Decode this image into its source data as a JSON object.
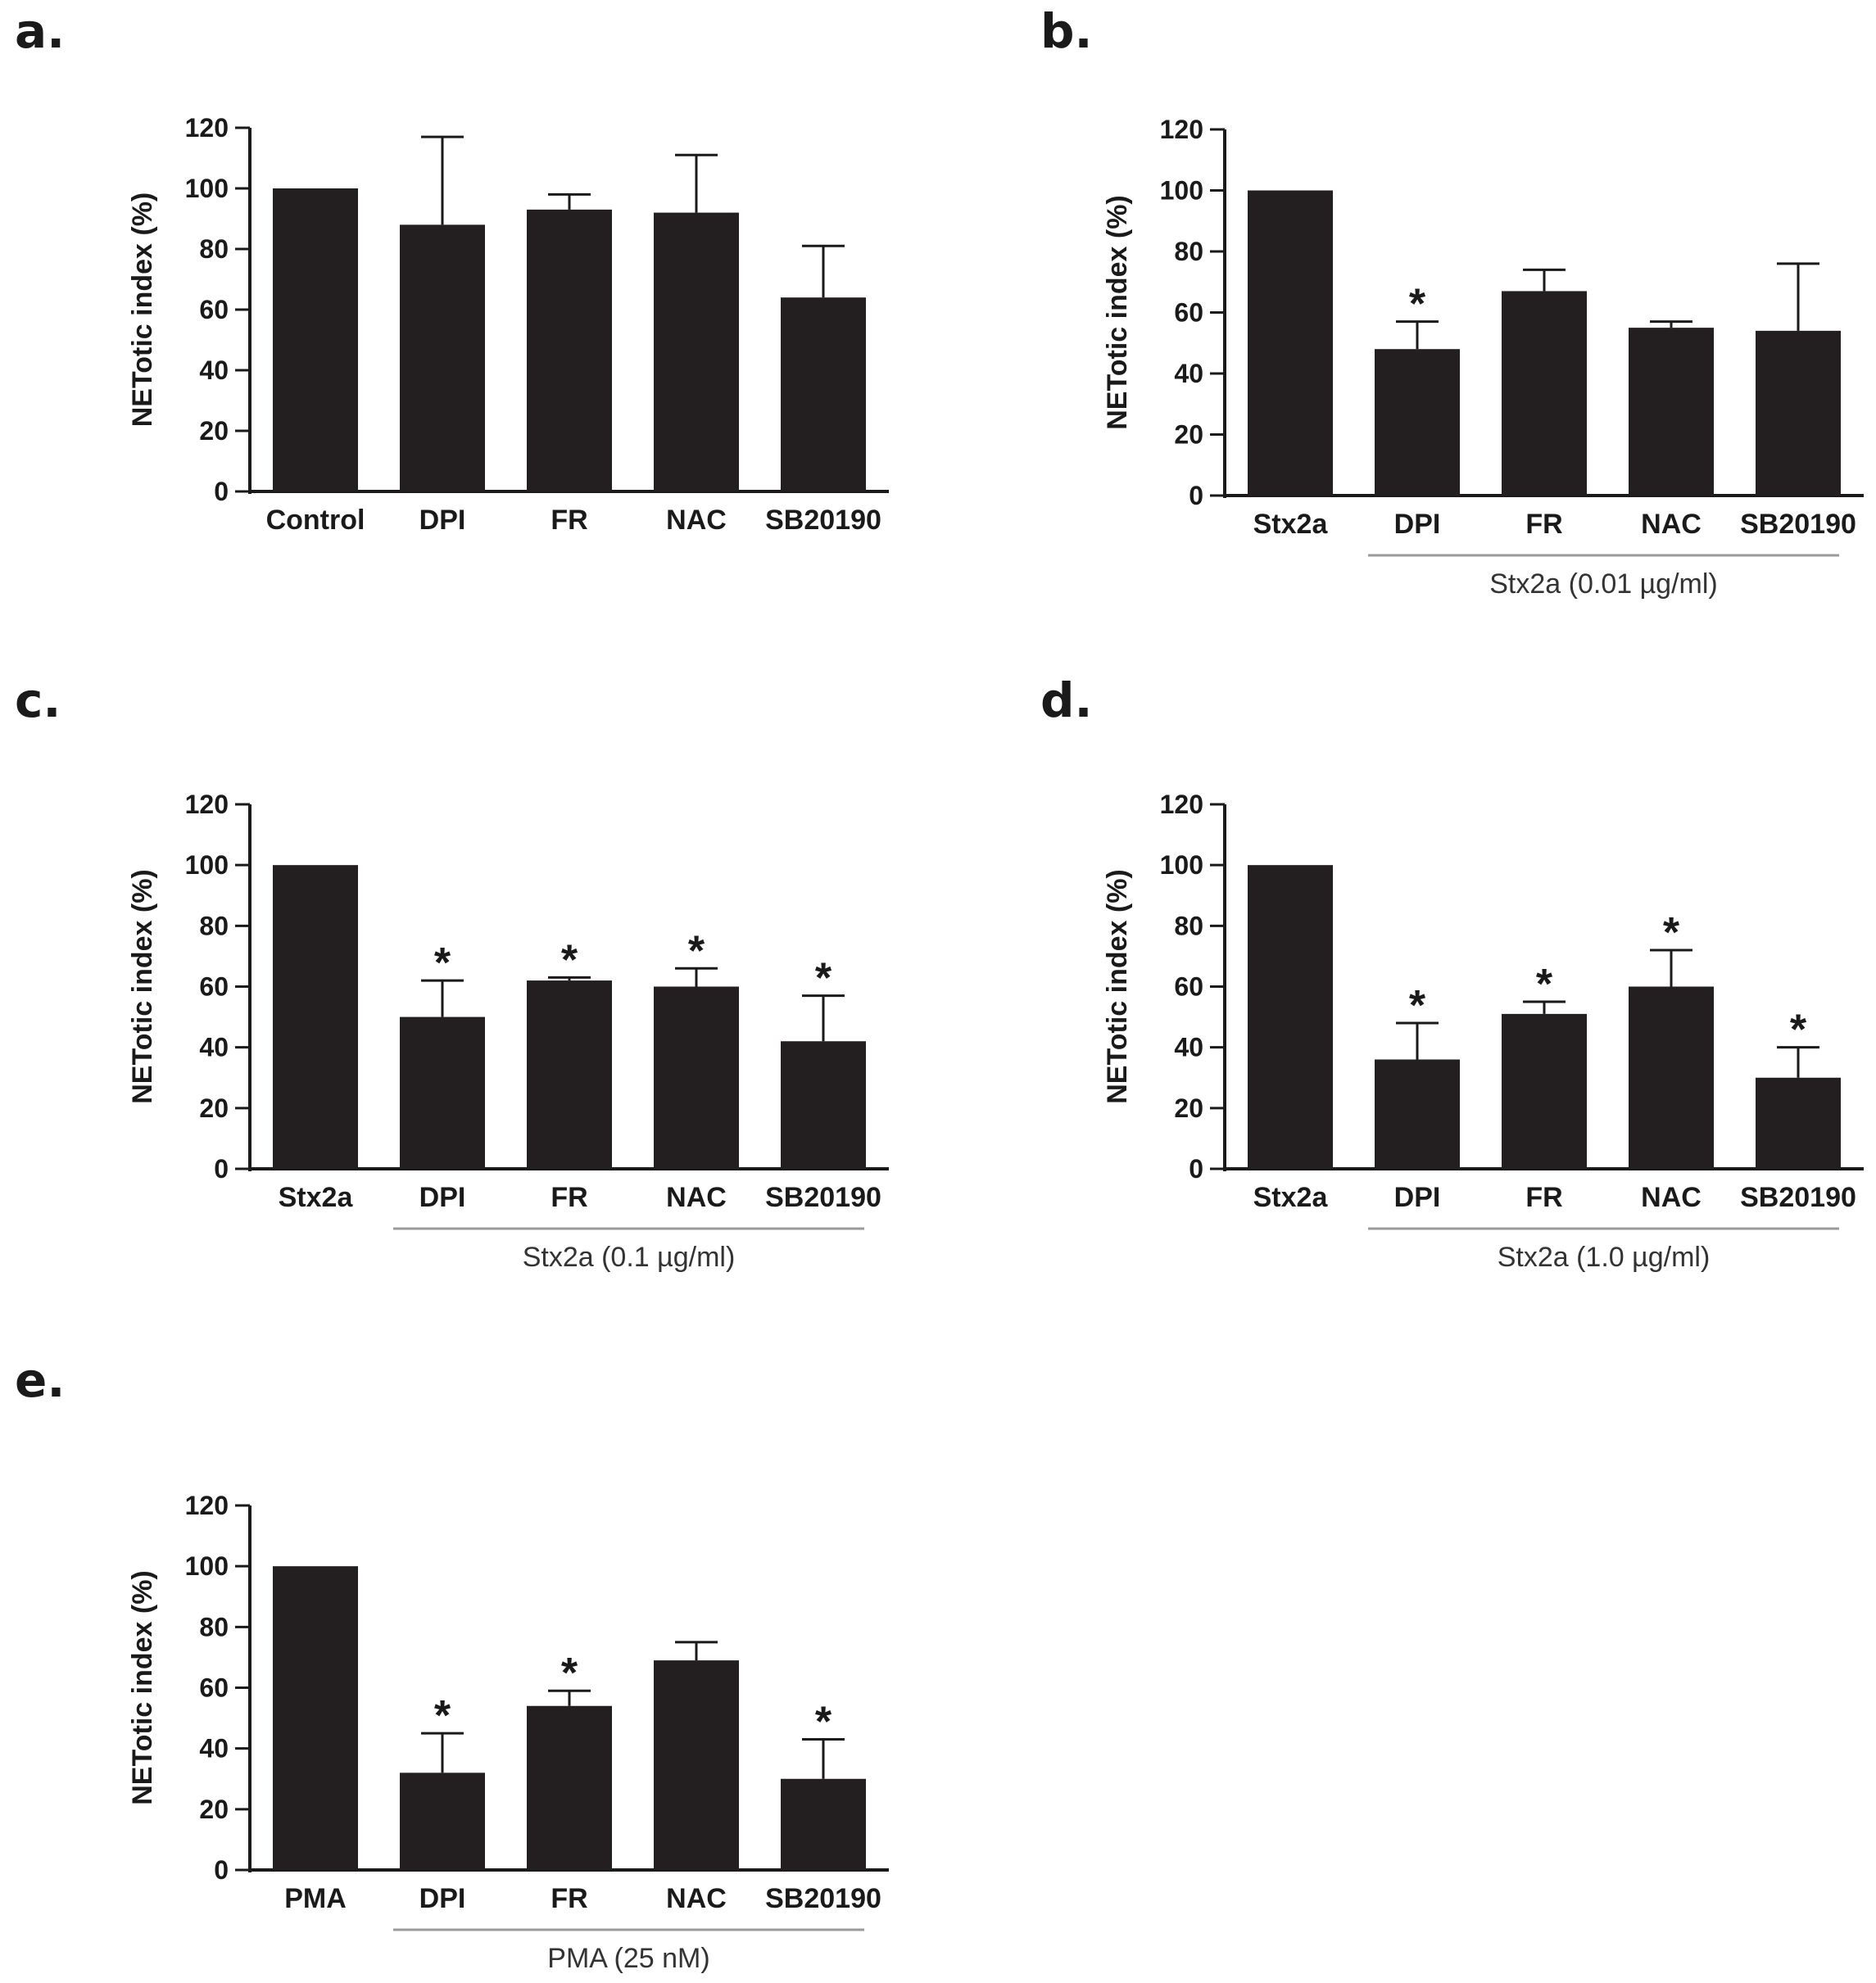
{
  "colors": {
    "bar": "#231f20",
    "axis": "#1a1a1a",
    "group_line": "#9a9a9a",
    "text": "#1a1a1a",
    "background": "#ffffff"
  },
  "chart_data": [
    {
      "panel": "a.",
      "type": "bar",
      "ylabel": "NETotic index (%)",
      "ylim": [
        0,
        120
      ],
      "yticks": [
        0,
        20,
        40,
        60,
        80,
        100,
        120
      ],
      "categories": [
        "Control",
        "DPI",
        "FR",
        "NAC",
        "SB20190"
      ],
      "values": [
        100,
        88,
        93,
        92,
        64
      ],
      "error_upper": [
        100,
        117,
        98,
        111,
        81
      ],
      "significance": [
        "",
        "",
        "",
        "",
        ""
      ],
      "group_label": ""
    },
    {
      "panel": "b.",
      "type": "bar",
      "ylabel": "NETotic index (%)",
      "ylim": [
        0,
        120
      ],
      "yticks": [
        0,
        20,
        40,
        60,
        80,
        100,
        120
      ],
      "categories": [
        "Stx2a",
        "DPI",
        "FR",
        "NAC",
        "SB20190"
      ],
      "values": [
        100,
        48,
        67,
        55,
        54
      ],
      "error_upper": [
        100,
        57,
        74,
        57,
        76
      ],
      "significance": [
        "",
        "*",
        "",
        "",
        ""
      ],
      "group_label": "Stx2a (0.01 µg/ml)"
    },
    {
      "panel": "c.",
      "type": "bar",
      "ylabel": "NETotic index (%)",
      "ylim": [
        0,
        120
      ],
      "yticks": [
        0,
        20,
        40,
        60,
        80,
        100,
        120
      ],
      "categories": [
        "Stx2a",
        "DPI",
        "FR",
        "NAC",
        "SB20190"
      ],
      "values": [
        100,
        50,
        62,
        60,
        42
      ],
      "error_upper": [
        100,
        62,
        63,
        66,
        57
      ],
      "significance": [
        "",
        "*",
        "*",
        "*",
        "*"
      ],
      "group_label": "Stx2a (0.1 µg/ml)"
    },
    {
      "panel": "d.",
      "type": "bar",
      "ylabel": "NETotic index (%)",
      "ylim": [
        0,
        120
      ],
      "yticks": [
        0,
        20,
        40,
        60,
        80,
        100,
        120
      ],
      "categories": [
        "Stx2a",
        "DPI",
        "FR",
        "NAC",
        "SB20190"
      ],
      "values": [
        100,
        36,
        51,
        60,
        30
      ],
      "error_upper": [
        100,
        48,
        55,
        72,
        40
      ],
      "significance": [
        "",
        "*",
        "*",
        "*",
        "*"
      ],
      "group_label": "Stx2a (1.0 µg/ml)"
    },
    {
      "panel": "e.",
      "type": "bar",
      "ylabel": "NETotic index (%)",
      "ylim": [
        0,
        120
      ],
      "yticks": [
        0,
        20,
        40,
        60,
        80,
        100,
        120
      ],
      "categories": [
        "PMA",
        "DPI",
        "FR",
        "NAC",
        "SB20190"
      ],
      "values": [
        100,
        32,
        54,
        69,
        30
      ],
      "error_upper": [
        100,
        45,
        59,
        75,
        43
      ],
      "significance": [
        "",
        "*",
        "*",
        "",
        "*"
      ],
      "group_label": "PMA (25 nM)"
    }
  ]
}
